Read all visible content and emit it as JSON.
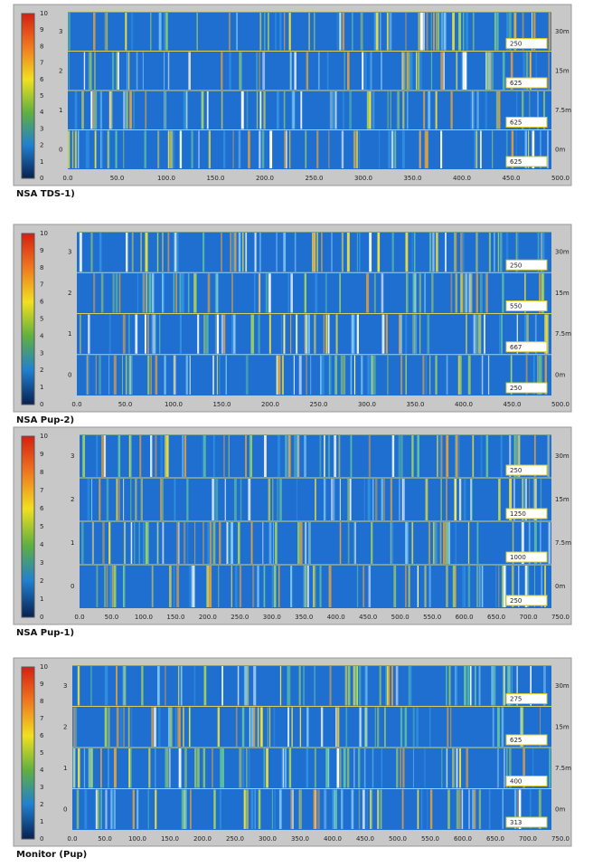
{
  "panels": [
    {
      "caption": "NSA TDS-1)",
      "colorbar_ticks": [
        "10",
        "9",
        "8",
        "7",
        "6",
        "5",
        "4",
        "3",
        "2",
        "1",
        "0"
      ],
      "row_labels": [
        "3",
        "2",
        "1",
        "0"
      ],
      "value_boxes": [
        "250",
        "625",
        "625",
        "625"
      ],
      "depth_labels": [
        "30m",
        "15m",
        "7.5m",
        "0m"
      ],
      "x_ticks": [
        "0.0",
        "50.0",
        "100.0",
        "150.0",
        "200.0",
        "250.0",
        "300.0",
        "350.0",
        "400.0",
        "450.0",
        "500.0"
      ]
    },
    {
      "caption": "NSA Pup-2)",
      "colorbar_ticks": [
        "10",
        "9",
        "8",
        "7",
        "6",
        "5",
        "4",
        "3",
        "2",
        "1",
        "0"
      ],
      "row_labels": [
        "3",
        "2",
        "1",
        "0"
      ],
      "value_boxes": [
        "250",
        "550",
        "667",
        "250"
      ],
      "depth_labels": [
        "30m",
        "15m",
        "7.5m",
        "0m"
      ],
      "x_ticks": [
        "0.0",
        "50.0",
        "100.0",
        "150.0",
        "200.0",
        "250.0",
        "300.0",
        "350.0",
        "400.0",
        "450.0",
        "500.0"
      ]
    },
    {
      "caption": "NSA Pup-1)",
      "colorbar_ticks": [
        "10",
        "9",
        "8",
        "7",
        "6",
        "5",
        "4",
        "3",
        "2",
        "1",
        "0"
      ],
      "row_labels": [
        "3",
        "2",
        "1",
        "0"
      ],
      "value_boxes": [
        "250",
        "1250",
        "1000",
        "250"
      ],
      "depth_labels": [
        "30m",
        "15m",
        "7.5m",
        "0m"
      ],
      "x_ticks": [
        "0.0",
        "50.0",
        "100.0",
        "150.0",
        "200.0",
        "250.0",
        "300.0",
        "350.0",
        "400.0",
        "450.0",
        "500.0",
        "550.0",
        "600.0",
        "650.0",
        "700.0",
        "750.0"
      ]
    },
    {
      "caption": "Monitor (Pup)",
      "colorbar_ticks": [
        "10",
        "9",
        "8",
        "7",
        "6",
        "5",
        "4",
        "3",
        "2",
        "1",
        "0"
      ],
      "row_labels": [
        "3",
        "2",
        "1",
        "0"
      ],
      "value_boxes": [
        "275",
        "625",
        "400",
        "313"
      ],
      "depth_labels": [
        "30m",
        "15m",
        "7.5m",
        "0m"
      ],
      "x_ticks": [
        "0.0",
        "50.0",
        "100.0",
        "150.0",
        "200.0",
        "250.0",
        "300.0",
        "350.0",
        "400.0",
        "450.0",
        "500.0",
        "550.0",
        "600.0",
        "650.0",
        "700.0",
        "750.0"
      ]
    }
  ]
}
